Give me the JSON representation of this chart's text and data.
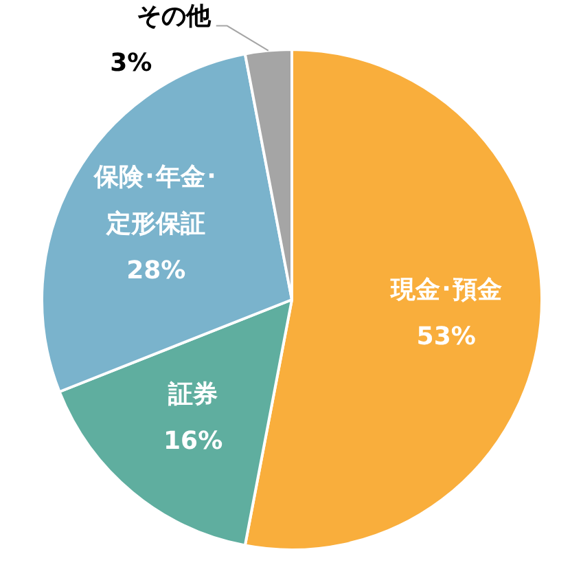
{
  "chart_data": {
    "type": "pie",
    "categories": [
      "現金･預金",
      "証券",
      "保険･年金･定形保証",
      "その他"
    ],
    "values": [
      53,
      16,
      28,
      3
    ],
    "colors": [
      "#f9ae3c",
      "#5fae9f",
      "#7ab3cc",
      "#a5a5a5"
    ],
    "value_labels": [
      "53%",
      "16%",
      "28%",
      "3%"
    ],
    "legend": false
  }
}
